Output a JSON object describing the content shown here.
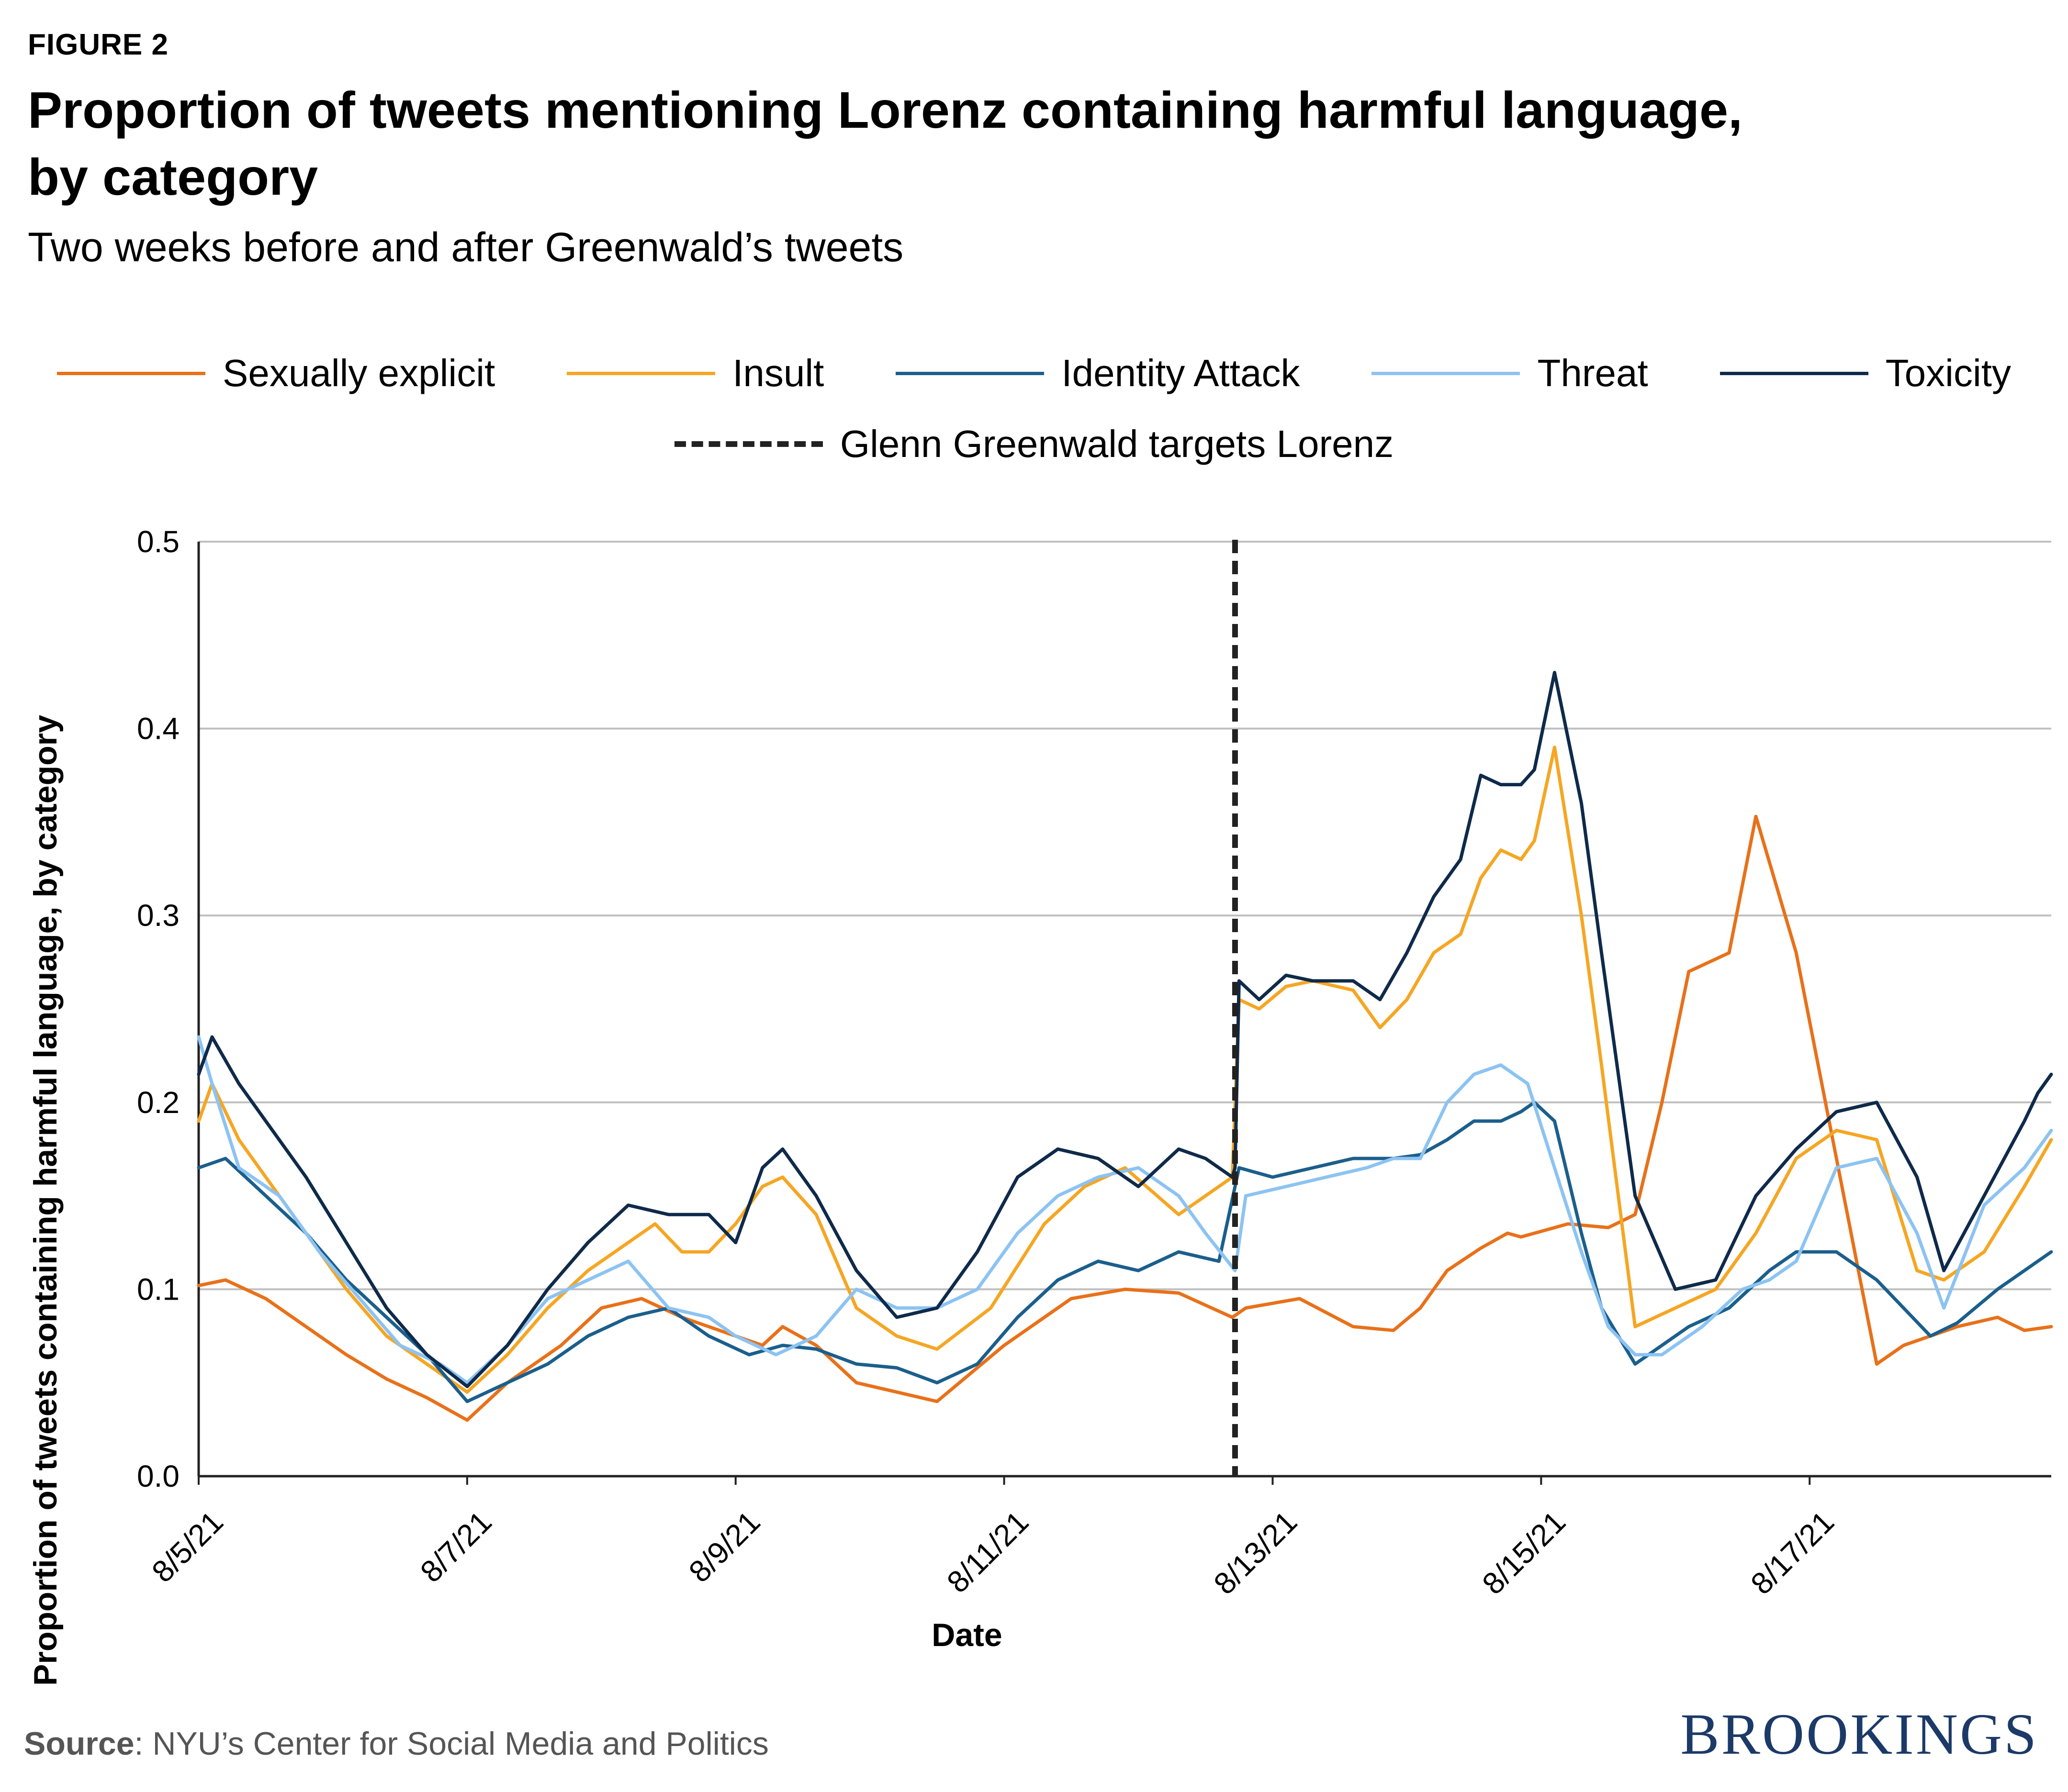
{
  "figure_label": "FIGURE 2",
  "title": "Proportion of tweets mentioning Lorenz containing harmful language, by category",
  "subtitle": "Two weeks before and after Greenwald’s tweets",
  "source_label": "Source",
  "source_text": ": NYU’s Center for Social Media and Politics",
  "brand": "BROOKINGS",
  "colors": {
    "sexually_explicit": "#e8711a",
    "insult": "#f5a623",
    "identity_attack": "#1b5f8c",
    "threat": "#8cc3f2",
    "toxicity": "#0f2a4a",
    "greenwald": "#222222",
    "grid": "#bfbfbf"
  },
  "legend": [
    {
      "label": "Sexually explicit",
      "color": "#e8711a"
    },
    {
      "label": "Insult",
      "color": "#f5a623"
    },
    {
      "label": "Identity Attack",
      "color": "#1b5f8c"
    },
    {
      "label": "Threat",
      "color": "#8cc3f2"
    },
    {
      "label": "Toxicity",
      "color": "#0f2a4a"
    }
  ],
  "event_label": "Glenn Greenwald targets Lorenz",
  "chart_data": {
    "type": "line",
    "title": "Proportion of tweets mentioning Lorenz containing harmful language, by category",
    "xlabel": "Date",
    "ylabel": "Proportion of tweets containing harmful language, by category",
    "ylim": [
      0,
      0.5
    ],
    "xlim": [
      0,
      13.8
    ],
    "yticks": [
      0.0,
      0.1,
      0.2,
      0.3,
      0.4,
      0.5
    ],
    "ytick_labels": [
      "0.0",
      "0.1",
      "0.2",
      "0.3",
      "0.4",
      "0.5"
    ],
    "xticks": [
      0,
      2,
      4,
      6,
      8,
      10,
      12
    ],
    "xtick_labels": [
      "8/5/21",
      "8/7/21",
      "8/9/21",
      "8/11/21",
      "8/13/21",
      "8/15/21",
      "8/17/21"
    ],
    "x_unit": "days since 8/5/21",
    "grid": true,
    "event_line": {
      "x": 7.72,
      "label": "Glenn Greenwald targets Lorenz"
    },
    "series": [
      {
        "name": "Sexually explicit",
        "color": "#e8711a",
        "x": [
          0,
          0.2,
          0.5,
          0.8,
          1.1,
          1.4,
          1.7,
          2.0,
          2.3,
          2.7,
          3.0,
          3.3,
          3.6,
          3.8,
          4.0,
          4.2,
          4.35,
          4.6,
          4.9,
          5.2,
          5.5,
          6.0,
          6.5,
          6.9,
          7.3,
          7.7,
          7.8,
          8.2,
          8.6,
          8.9,
          9.1,
          9.3,
          9.55,
          9.75,
          9.85,
          9.95,
          10.2,
          10.5,
          10.7,
          10.9,
          11.1,
          11.4,
          11.6,
          11.9,
          12.2,
          12.5,
          12.7,
          12.9,
          13.1,
          13.4,
          13.6,
          13.8
        ],
        "values": [
          0.102,
          0.105,
          0.095,
          0.08,
          0.065,
          0.052,
          0.042,
          0.03,
          0.05,
          0.07,
          0.09,
          0.095,
          0.085,
          0.08,
          0.075,
          0.07,
          0.08,
          0.07,
          0.05,
          0.045,
          0.04,
          0.07,
          0.095,
          0.1,
          0.098,
          0.085,
          0.09,
          0.095,
          0.08,
          0.078,
          0.09,
          0.11,
          0.122,
          0.13,
          0.128,
          0.13,
          0.135,
          0.133,
          0.14,
          0.2,
          0.27,
          0.28,
          0.353,
          0.28,
          0.17,
          0.06,
          0.07,
          0.075,
          0.08,
          0.085,
          0.078,
          0.08
        ]
      },
      {
        "name": "Insult",
        "color": "#f5a623",
        "x": [
          0,
          0.1,
          0.3,
          0.5,
          0.8,
          1.1,
          1.4,
          1.7,
          2.0,
          2.3,
          2.6,
          2.9,
          3.2,
          3.4,
          3.6,
          3.8,
          4.0,
          4.2,
          4.35,
          4.6,
          4.9,
          5.2,
          5.5,
          5.9,
          6.3,
          6.6,
          6.9,
          7.3,
          7.6,
          7.7,
          7.75,
          7.9,
          8.1,
          8.3,
          8.6,
          8.8,
          9.0,
          9.2,
          9.4,
          9.55,
          9.7,
          9.85,
          9.95,
          10.1,
          10.3,
          10.45,
          10.7,
          11.0,
          11.3,
          11.6,
          11.9,
          12.2,
          12.5,
          12.8,
          13.0,
          13.3,
          13.6,
          13.8
        ],
        "values": [
          0.19,
          0.21,
          0.18,
          0.16,
          0.13,
          0.1,
          0.075,
          0.06,
          0.045,
          0.065,
          0.09,
          0.11,
          0.125,
          0.135,
          0.12,
          0.12,
          0.135,
          0.155,
          0.16,
          0.14,
          0.09,
          0.075,
          0.068,
          0.09,
          0.135,
          0.155,
          0.165,
          0.14,
          0.155,
          0.16,
          0.255,
          0.25,
          0.262,
          0.265,
          0.26,
          0.24,
          0.255,
          0.28,
          0.29,
          0.32,
          0.335,
          0.33,
          0.34,
          0.39,
          0.3,
          0.22,
          0.08,
          0.09,
          0.1,
          0.13,
          0.17,
          0.185,
          0.18,
          0.11,
          0.105,
          0.12,
          0.155,
          0.18
        ]
      },
      {
        "name": "Identity Attack",
        "color": "#1b5f8c",
        "x": [
          0,
          0.2,
          0.5,
          0.8,
          1.1,
          1.4,
          1.7,
          2.0,
          2.3,
          2.6,
          2.9,
          3.2,
          3.5,
          3.8,
          4.1,
          4.35,
          4.6,
          4.9,
          5.2,
          5.5,
          5.8,
          6.1,
          6.4,
          6.7,
          7.0,
          7.3,
          7.6,
          7.75,
          8.0,
          8.3,
          8.6,
          8.9,
          9.1,
          9.3,
          9.5,
          9.7,
          9.85,
          9.95,
          10.1,
          10.3,
          10.45,
          10.7,
          10.9,
          11.1,
          11.4,
          11.7,
          11.9,
          12.2,
          12.5,
          12.7,
          12.9,
          13.1,
          13.4,
          13.8
        ],
        "values": [
          0.165,
          0.17,
          0.15,
          0.13,
          0.105,
          0.085,
          0.065,
          0.04,
          0.05,
          0.06,
          0.075,
          0.085,
          0.09,
          0.075,
          0.065,
          0.07,
          0.068,
          0.06,
          0.058,
          0.05,
          0.06,
          0.085,
          0.105,
          0.115,
          0.11,
          0.12,
          0.115,
          0.165,
          0.16,
          0.165,
          0.17,
          0.17,
          0.172,
          0.18,
          0.19,
          0.19,
          0.195,
          0.2,
          0.19,
          0.13,
          0.09,
          0.06,
          0.07,
          0.08,
          0.09,
          0.11,
          0.12,
          0.12,
          0.105,
          0.09,
          0.075,
          0.082,
          0.1,
          0.12
        ]
      },
      {
        "name": "Threat",
        "color": "#8cc3f2",
        "x": [
          0,
          0.1,
          0.3,
          0.6,
          0.9,
          1.2,
          1.5,
          1.8,
          2.0,
          2.3,
          2.6,
          2.9,
          3.2,
          3.5,
          3.8,
          4.0,
          4.3,
          4.6,
          4.9,
          5.2,
          5.5,
          5.8,
          6.1,
          6.4,
          6.7,
          7.0,
          7.3,
          7.5,
          7.72,
          7.8,
          8.1,
          8.4,
          8.7,
          8.9,
          9.1,
          9.3,
          9.5,
          9.7,
          9.9,
          10.1,
          10.3,
          10.5,
          10.7,
          10.9,
          11.2,
          11.5,
          11.7,
          11.9,
          12.2,
          12.5,
          12.8,
          13.0,
          13.3,
          13.6,
          13.8
        ],
        "values": [
          0.235,
          0.21,
          0.165,
          0.15,
          0.12,
          0.095,
          0.07,
          0.06,
          0.05,
          0.07,
          0.095,
          0.105,
          0.115,
          0.09,
          0.085,
          0.075,
          0.065,
          0.075,
          0.1,
          0.09,
          0.09,
          0.1,
          0.13,
          0.15,
          0.16,
          0.165,
          0.15,
          0.13,
          0.11,
          0.15,
          0.155,
          0.16,
          0.165,
          0.17,
          0.17,
          0.2,
          0.215,
          0.22,
          0.21,
          0.165,
          0.12,
          0.08,
          0.065,
          0.065,
          0.08,
          0.1,
          0.105,
          0.115,
          0.165,
          0.17,
          0.13,
          0.09,
          0.145,
          0.165,
          0.185
        ]
      },
      {
        "name": "Toxicity",
        "color": "#0f2a4a",
        "x": [
          0,
          0.1,
          0.3,
          0.5,
          0.8,
          1.1,
          1.4,
          1.7,
          2.0,
          2.3,
          2.6,
          2.9,
          3.2,
          3.5,
          3.8,
          4.0,
          4.2,
          4.35,
          4.6,
          4.9,
          5.2,
          5.5,
          5.8,
          6.1,
          6.4,
          6.7,
          7.0,
          7.3,
          7.5,
          7.7,
          7.72,
          7.75,
          7.9,
          8.1,
          8.3,
          8.6,
          8.8,
          9.0,
          9.2,
          9.4,
          9.55,
          9.7,
          9.85,
          9.95,
          10.1,
          10.3,
          10.45,
          10.7,
          11.0,
          11.3,
          11.6,
          11.9,
          12.2,
          12.5,
          12.8,
          13.0,
          13.3,
          13.6,
          13.7,
          13.8
        ],
        "values": [
          0.215,
          0.235,
          0.21,
          0.19,
          0.16,
          0.125,
          0.09,
          0.065,
          0.048,
          0.07,
          0.1,
          0.125,
          0.145,
          0.14,
          0.14,
          0.125,
          0.165,
          0.175,
          0.15,
          0.11,
          0.085,
          0.09,
          0.12,
          0.16,
          0.175,
          0.17,
          0.155,
          0.175,
          0.17,
          0.16,
          0.165,
          0.265,
          0.255,
          0.268,
          0.265,
          0.265,
          0.255,
          0.28,
          0.31,
          0.33,
          0.375,
          0.37,
          0.37,
          0.378,
          0.43,
          0.36,
          0.28,
          0.15,
          0.1,
          0.105,
          0.15,
          0.175,
          0.195,
          0.2,
          0.16,
          0.11,
          0.15,
          0.19,
          0.205,
          0.215
        ]
      }
    ]
  }
}
